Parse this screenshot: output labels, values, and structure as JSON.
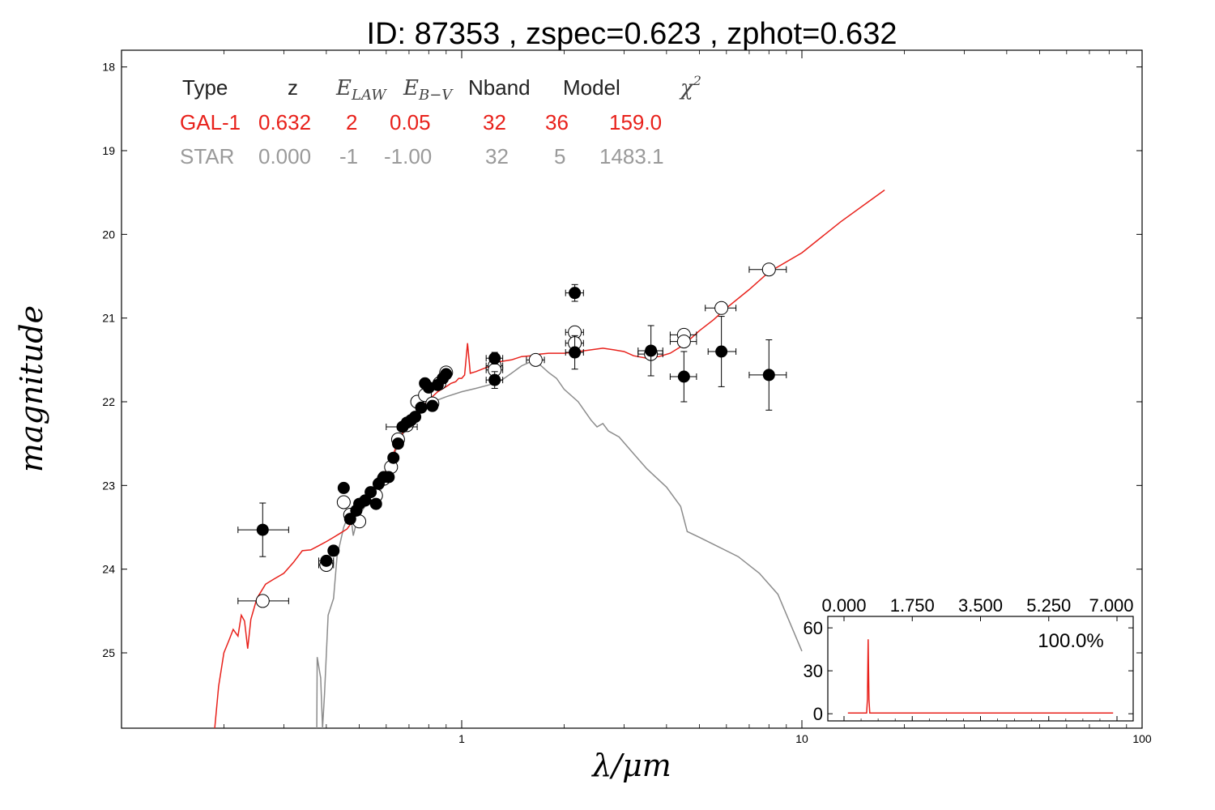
{
  "title": "ID:  87353 , zspec=0.623 , zphot=0.632",
  "chart_data": {
    "type": "scatter",
    "xlabel": "λ/μm",
    "ylabel": "magnitude",
    "x_scale": "log",
    "xlim": [
      0.1,
      100
    ],
    "ylim": [
      25.9,
      17.8
    ],
    "y_inverted": true,
    "x_ticks": [
      1,
      10,
      100
    ],
    "x_tick_labels": [
      "1",
      "10",
      "100"
    ],
    "y_ticks": [
      18,
      19,
      20,
      21,
      22,
      23,
      24,
      25
    ],
    "y_tick_labels": [
      "18",
      "19",
      "20",
      "21",
      "22",
      "23",
      "24",
      "25"
    ],
    "table": {
      "headers": [
        "Type",
        "z",
        "E_LAW",
        "E_B-V",
        "Nband",
        "Model",
        "χ²"
      ],
      "rows": [
        {
          "color": "#e8211b",
          "cells": [
            "GAL-1",
            "0.632",
            "2",
            "0.05",
            "32",
            "36",
            "159.0"
          ]
        },
        {
          "color": "#9a9a9a",
          "cells": [
            "STAR",
            "0.000",
            "-1",
            "-1.00",
            "32",
            "5",
            "1483.1"
          ]
        }
      ]
    },
    "galaxy_model": {
      "color": "#e8211b",
      "points": [
        [
          0.188,
          25.9
        ],
        [
          0.193,
          25.4
        ],
        [
          0.2,
          25.0
        ],
        [
          0.207,
          24.85
        ],
        [
          0.213,
          24.72
        ],
        [
          0.22,
          24.8
        ],
        [
          0.225,
          24.55
        ],
        [
          0.23,
          24.62
        ],
        [
          0.235,
          24.95
        ],
        [
          0.24,
          24.6
        ],
        [
          0.25,
          24.35
        ],
        [
          0.265,
          24.18
        ],
        [
          0.28,
          24.12
        ],
        [
          0.3,
          24.05
        ],
        [
          0.32,
          23.92
        ],
        [
          0.34,
          23.78
        ],
        [
          0.36,
          23.77
        ],
        [
          0.38,
          23.72
        ],
        [
          0.4,
          23.67
        ],
        [
          0.42,
          23.62
        ],
        [
          0.44,
          23.57
        ],
        [
          0.46,
          23.52
        ],
        [
          0.48,
          23.42
        ],
        [
          0.5,
          23.32
        ],
        [
          0.52,
          23.22
        ],
        [
          0.55,
          23.1
        ],
        [
          0.58,
          22.95
        ],
        [
          0.6,
          22.82
        ],
        [
          0.63,
          22.62
        ],
        [
          0.66,
          22.42
        ],
        [
          0.7,
          22.25
        ],
        [
          0.75,
          22.1
        ],
        [
          0.8,
          21.98
        ],
        [
          0.85,
          21.88
        ],
        [
          0.9,
          21.82
        ],
        [
          0.93,
          21.78
        ],
        [
          0.96,
          21.76
        ],
        [
          0.98,
          21.72
        ],
        [
          1.0,
          21.72
        ],
        [
          1.02,
          21.68
        ],
        [
          1.04,
          21.3
        ],
        [
          1.06,
          21.66
        ],
        [
          1.1,
          21.64
        ],
        [
          1.2,
          21.58
        ],
        [
          1.3,
          21.52
        ],
        [
          1.4,
          21.5
        ],
        [
          1.5,
          21.46
        ],
        [
          1.6,
          21.45
        ],
        [
          1.7,
          21.43
        ],
        [
          1.8,
          21.42
        ],
        [
          2.0,
          21.42
        ],
        [
          2.2,
          21.4
        ],
        [
          2.4,
          21.38
        ],
        [
          2.6,
          21.36
        ],
        [
          2.8,
          21.38
        ],
        [
          3.0,
          21.4
        ],
        [
          3.2,
          21.45
        ],
        [
          3.5,
          21.48
        ],
        [
          3.8,
          21.46
        ],
        [
          4.1,
          21.42
        ],
        [
          4.5,
          21.32
        ],
        [
          5.0,
          21.15
        ],
        [
          5.5,
          21.02
        ],
        [
          6.0,
          20.88
        ],
        [
          7.0,
          20.66
        ],
        [
          8.0,
          20.45
        ],
        [
          10.0,
          20.22
        ],
        [
          13.0,
          19.85
        ],
        [
          17.5,
          19.47
        ]
      ]
    },
    "star_model": {
      "color": "#8c8c8c",
      "points": [
        [
          0.375,
          25.9
        ],
        [
          0.376,
          25.05
        ],
        [
          0.385,
          25.3
        ],
        [
          0.39,
          25.9
        ],
        [
          0.395,
          25.5
        ],
        [
          0.405,
          24.55
        ],
        [
          0.42,
          24.35
        ],
        [
          0.43,
          23.85
        ],
        [
          0.45,
          23.5
        ],
        [
          0.47,
          23.3
        ],
        [
          0.48,
          23.6
        ],
        [
          0.49,
          23.45
        ],
        [
          0.5,
          23.35
        ],
        [
          0.52,
          23.25
        ],
        [
          0.55,
          23.2
        ],
        [
          0.57,
          23.12
        ],
        [
          0.59,
          22.95
        ],
        [
          0.62,
          22.75
        ],
        [
          0.65,
          22.5
        ],
        [
          0.7,
          22.25
        ],
        [
          0.75,
          22.1
        ],
        [
          0.8,
          22.02
        ],
        [
          0.9,
          21.94
        ],
        [
          1.0,
          21.88
        ],
        [
          1.1,
          21.84
        ],
        [
          1.2,
          21.8
        ],
        [
          1.3,
          21.75
        ],
        [
          1.4,
          21.66
        ],
        [
          1.5,
          21.57
        ],
        [
          1.6,
          21.52
        ],
        [
          1.7,
          21.56
        ],
        [
          1.8,
          21.65
        ],
        [
          1.9,
          21.72
        ],
        [
          2.0,
          21.85
        ],
        [
          2.2,
          22.0
        ],
        [
          2.4,
          22.22
        ],
        [
          2.5,
          22.3
        ],
        [
          2.6,
          22.26
        ],
        [
          2.7,
          22.35
        ],
        [
          2.9,
          22.42
        ],
        [
          3.2,
          22.62
        ],
        [
          3.5,
          22.8
        ],
        [
          4.0,
          23.02
        ],
        [
          4.4,
          23.25
        ],
        [
          4.6,
          23.55
        ],
        [
          5.0,
          23.62
        ],
        [
          5.6,
          23.72
        ],
        [
          6.5,
          23.85
        ],
        [
          7.5,
          24.05
        ],
        [
          8.5,
          24.3
        ],
        [
          10.0,
          24.98
        ]
      ]
    },
    "observed_points": [
      {
        "x": 0.26,
        "y": 23.53,
        "xerr": [
          0.22,
          0.31
        ],
        "yerr": 0.32
      },
      {
        "x": 0.4,
        "y": 23.9,
        "xerr": [
          0.38,
          0.42
        ],
        "yerr": 0.05
      },
      {
        "x": 0.42,
        "y": 23.78,
        "xerr": [
          0.41,
          0.43
        ],
        "yerr": 0.04
      },
      {
        "x": 0.45,
        "y": 23.03,
        "xerr": [
          0.44,
          0.46
        ],
        "yerr": 0.03
      },
      {
        "x": 0.47,
        "y": 23.4,
        "xerr": [
          0.46,
          0.48
        ],
        "yerr": 0.03
      },
      {
        "x": 0.49,
        "y": 23.3,
        "xerr": [
          0.48,
          0.5
        ],
        "yerr": 0.03
      },
      {
        "x": 0.5,
        "y": 23.22,
        "xerr": [
          0.49,
          0.51
        ],
        "yerr": 0.03
      },
      {
        "x": 0.52,
        "y": 23.18,
        "xerr": [
          0.51,
          0.53
        ],
        "yerr": 0.03
      },
      {
        "x": 0.54,
        "y": 23.08,
        "xerr": [
          0.53,
          0.55
        ],
        "yerr": 0.03
      },
      {
        "x": 0.56,
        "y": 23.22,
        "xerr": [
          0.55,
          0.57
        ],
        "yerr": 0.03
      },
      {
        "x": 0.57,
        "y": 22.98,
        "xerr": [
          0.56,
          0.58
        ],
        "yerr": 0.03
      },
      {
        "x": 0.59,
        "y": 22.9,
        "xerr": [
          0.58,
          0.6
        ],
        "yerr": 0.03
      },
      {
        "x": 0.61,
        "y": 22.9,
        "xerr": [
          0.6,
          0.62
        ],
        "yerr": 0.03
      },
      {
        "x": 0.63,
        "y": 22.67,
        "xerr": [
          0.62,
          0.64
        ],
        "yerr": 0.03
      },
      {
        "x": 0.65,
        "y": 22.5,
        "xerr": [
          0.64,
          0.66
        ],
        "yerr": 0.03
      },
      {
        "x": 0.67,
        "y": 22.3,
        "xerr": [
          0.6,
          0.74
        ],
        "yerr": 0.03
      },
      {
        "x": 0.69,
        "y": 22.25,
        "xerr": [
          0.68,
          0.7
        ],
        "yerr": 0.03
      },
      {
        "x": 0.71,
        "y": 22.22,
        "xerr": [
          0.7,
          0.72
        ],
        "yerr": 0.03
      },
      {
        "x": 0.73,
        "y": 22.18,
        "xerr": [
          0.72,
          0.74
        ],
        "yerr": 0.03
      },
      {
        "x": 0.76,
        "y": 22.07,
        "xerr": [
          0.75,
          0.77
        ],
        "yerr": 0.03
      },
      {
        "x": 0.78,
        "y": 21.78,
        "xerr": [
          0.77,
          0.79
        ],
        "yerr": 0.03
      },
      {
        "x": 0.8,
        "y": 21.83,
        "xerr": [
          0.79,
          0.81
        ],
        "yerr": 0.03
      },
      {
        "x": 0.82,
        "y": 22.05,
        "xerr": [
          0.81,
          0.83
        ],
        "yerr": 0.03
      },
      {
        "x": 0.85,
        "y": 21.8,
        "xerr": [
          0.84,
          0.86
        ],
        "yerr": 0.03
      },
      {
        "x": 0.88,
        "y": 21.72,
        "xerr": [
          0.87,
          0.89
        ],
        "yerr": 0.03
      },
      {
        "x": 0.9,
        "y": 21.67,
        "xerr": [
          0.89,
          0.91
        ],
        "yerr": 0.03
      },
      {
        "x": 1.25,
        "y": 21.48,
        "xerr": [
          1.18,
          1.32
        ],
        "yerr": 0.07
      },
      {
        "x": 1.25,
        "y": 21.74,
        "xerr": [
          1.18,
          1.32
        ],
        "yerr": 0.1
      },
      {
        "x": 2.15,
        "y": 20.7,
        "xerr": [
          2.02,
          2.28
        ],
        "yerr": 0.1
      },
      {
        "x": 2.15,
        "y": 21.41,
        "xerr": [
          2.02,
          2.28
        ],
        "yerr": 0.2
      },
      {
        "x": 3.6,
        "y": 21.39,
        "xerr": [
          3.3,
          3.9
        ],
        "yerr": 0.3
      },
      {
        "x": 4.5,
        "y": 21.7,
        "xerr": [
          4.1,
          4.9
        ],
        "yerr": 0.3
      },
      {
        "x": 5.8,
        "y": 21.4,
        "xerr": [
          5.3,
          6.4
        ],
        "yerr": 0.42
      },
      {
        "x": 8.0,
        "y": 21.68,
        "xerr": [
          7.0,
          9.0
        ],
        "yerr": 0.42
      }
    ],
    "model_points": [
      {
        "x": 0.26,
        "y": 24.38,
        "xerr": [
          0.22,
          0.31
        ]
      },
      {
        "x": 0.4,
        "y": 23.95,
        "xerr": [
          0.38,
          0.42
        ]
      },
      {
        "x": 0.45,
        "y": 23.2,
        "xerr": [
          0.44,
          0.46
        ]
      },
      {
        "x": 0.47,
        "y": 23.35,
        "xerr": [
          0.46,
          0.48
        ]
      },
      {
        "x": 0.5,
        "y": 23.43,
        "xerr": [
          0.49,
          0.51
        ]
      },
      {
        "x": 0.56,
        "y": 23.12,
        "xerr": [
          0.55,
          0.57
        ]
      },
      {
        "x": 0.59,
        "y": 22.92,
        "xerr": [
          0.58,
          0.6
        ]
      },
      {
        "x": 0.62,
        "y": 22.78,
        "xerr": [
          0.61,
          0.63
        ]
      },
      {
        "x": 0.65,
        "y": 22.45,
        "xerr": [
          0.64,
          0.66
        ]
      },
      {
        "x": 0.69,
        "y": 22.28,
        "xerr": [
          0.68,
          0.7
        ]
      },
      {
        "x": 0.74,
        "y": 22.0,
        "xerr": [
          0.73,
          0.75
        ]
      },
      {
        "x": 0.78,
        "y": 21.92,
        "xerr": [
          0.77,
          0.79
        ]
      },
      {
        "x": 0.82,
        "y": 22.02,
        "xerr": [
          0.81,
          0.83
        ]
      },
      {
        "x": 0.86,
        "y": 21.78,
        "xerr": [
          0.85,
          0.87
        ]
      },
      {
        "x": 0.9,
        "y": 21.65,
        "xerr": [
          0.89,
          0.91
        ]
      },
      {
        "x": 1.25,
        "y": 21.57,
        "xerr": [
          1.18,
          1.32
        ]
      },
      {
        "x": 1.25,
        "y": 21.62,
        "xerr": [
          1.18,
          1.32
        ]
      },
      {
        "x": 1.65,
        "y": 21.5,
        "xerr": [
          1.55,
          1.75
        ]
      },
      {
        "x": 2.15,
        "y": 21.17,
        "xerr": [
          2.02,
          2.28
        ]
      },
      {
        "x": 2.15,
        "y": 21.3,
        "xerr": [
          2.02,
          2.28
        ]
      },
      {
        "x": 3.6,
        "y": 21.43,
        "xerr": [
          3.3,
          3.9
        ]
      },
      {
        "x": 4.5,
        "y": 21.2,
        "xerr": [
          4.1,
          4.9
        ]
      },
      {
        "x": 4.5,
        "y": 21.28,
        "xerr": [
          4.1,
          4.9
        ]
      },
      {
        "x": 5.8,
        "y": 20.88,
        "xerr": [
          5.2,
          6.4
        ]
      },
      {
        "x": 8.0,
        "y": 20.42,
        "xerr": [
          7.0,
          9.0
        ]
      }
    ],
    "inset": {
      "type": "line",
      "xlim": [
        0,
        7
      ],
      "ylim": [
        -5,
        68
      ],
      "x_ticks": [
        0,
        1.75,
        3.5,
        5.25,
        7
      ],
      "x_tick_labels": [
        "0.000",
        "1.750",
        "3.500",
        "5.250",
        "7.000"
      ],
      "y_ticks": [
        0,
        30,
        60
      ],
      "y_tick_labels": [
        "0",
        "30",
        "60"
      ],
      "annotation": "100.0%",
      "color": "#e8211b",
      "points": [
        [
          0.1,
          0.5
        ],
        [
          0.58,
          0.5
        ],
        [
          0.6,
          10
        ],
        [
          0.62,
          52
        ],
        [
          0.64,
          10
        ],
        [
          0.66,
          0.5
        ],
        [
          6.9,
          0.5
        ]
      ]
    }
  }
}
